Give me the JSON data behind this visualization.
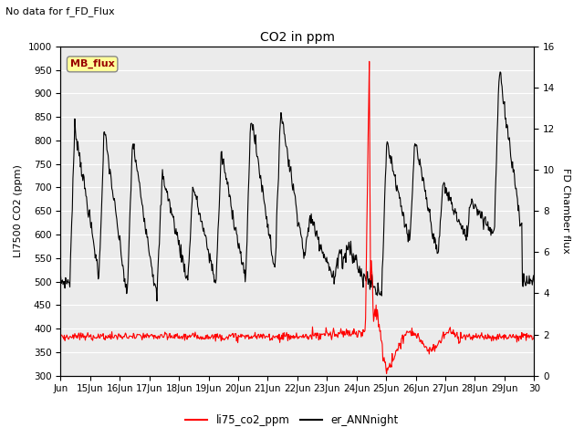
{
  "title": "CO2 in ppm",
  "subtitle": "No data for f_FD_Flux",
  "ylabel_left": "LI7500 CO2 (ppm)",
  "ylabel_right": "FD Chamber flux",
  "ylim_left": [
    300,
    1000
  ],
  "ylim_right": [
    0,
    16
  ],
  "yticks_left": [
    300,
    350,
    400,
    450,
    500,
    550,
    600,
    650,
    700,
    750,
    800,
    850,
    900,
    950,
    1000
  ],
  "yticks_right": [
    0,
    2,
    4,
    6,
    8,
    10,
    12,
    14,
    16
  ],
  "xticklabels": [
    "Jun",
    "15Jun",
    "16Jun",
    "17Jun",
    "18Jun",
    "19Jun",
    "20Jun",
    "21Jun",
    "22Jun",
    "23Jun",
    "24Jun",
    "25Jun",
    "26Jun",
    "27Jun",
    "28Jun",
    "29Jun",
    "30"
  ],
  "legend_entries": [
    "li75_co2_ppm",
    "er_ANNnight"
  ],
  "legend_colors": [
    "#ff0000",
    "#000000"
  ],
  "background_color": "#ffffff",
  "plot_bg_color": "#ebebeb",
  "grid_color": "#ffffff",
  "MB_flux_box_color": "#ffff99",
  "MB_flux_text_color": "#990000",
  "figsize": [
    6.4,
    4.8
  ],
  "dpi": 100
}
